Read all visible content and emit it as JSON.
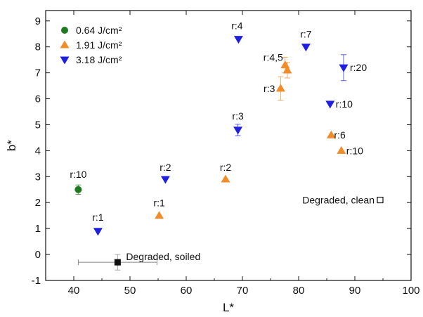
{
  "chart_data": {
    "type": "scatter",
    "xlabel": "L*",
    "ylabel": "b*",
    "xlim": [
      35,
      100
    ],
    "ylim": [
      -1,
      9.4
    ],
    "xticks": [
      40,
      50,
      60,
      70,
      80,
      90,
      100
    ],
    "yticks": [
      -1,
      0,
      1,
      2,
      3,
      4,
      5,
      6,
      7,
      8,
      9
    ],
    "legend_position": "top-left",
    "series": [
      {
        "name": "0.64 J/cm²",
        "marker": "circle",
        "color": "#1f7a1f",
        "points": [
          {
            "x": 40.8,
            "y": 2.5,
            "yerr": 0.18,
            "label": "r:10"
          }
        ]
      },
      {
        "name": "1.91 J/cm²",
        "marker": "triangle-up",
        "color": "#f28c28",
        "points": [
          {
            "x": 55.2,
            "y": 1.5,
            "label": "r:1"
          },
          {
            "x": 67.0,
            "y": 2.9,
            "label": "r:2"
          },
          {
            "x": 76.8,
            "y": 6.4,
            "yerr": 0.45,
            "label": "r:3"
          },
          {
            "x": 77.6,
            "y": 7.3,
            "yerr": 0.3,
            "label": "r:4,5"
          },
          {
            "x": 78.0,
            "y": 7.1,
            "yerr": 0.3,
            "label": ""
          },
          {
            "x": 85.8,
            "y": 4.6,
            "label": "r:6"
          },
          {
            "x": 87.6,
            "y": 4.0,
            "label": "r:10"
          }
        ]
      },
      {
        "name": "3.18 J/cm²",
        "marker": "triangle-down",
        "color": "#1f1fe0",
        "points": [
          {
            "x": 44.3,
            "y": 0.9,
            "label": "r:1"
          },
          {
            "x": 56.3,
            "y": 2.9,
            "label": "r:2"
          },
          {
            "x": 69.2,
            "y": 4.8,
            "yerr": 0.22,
            "label": "r:3"
          },
          {
            "x": 69.3,
            "y": 8.3,
            "label": "r:4"
          },
          {
            "x": 81.3,
            "y": 8.0,
            "label": "r:7"
          },
          {
            "x": 85.6,
            "y": 5.8,
            "label": "r:10"
          },
          {
            "x": 88.0,
            "y": 7.2,
            "yerr": 0.5,
            "label": "r:20"
          }
        ]
      },
      {
        "name": "Degraded, soiled",
        "marker": "square-filled",
        "color": "#111111",
        "points": [
          {
            "x": 47.8,
            "y": -0.3,
            "xerr": 7.0,
            "yerr": 0.3,
            "label": "Degraded, soiled"
          }
        ]
      },
      {
        "name": "Degraded, clean",
        "marker": "square-open",
        "color": "#111111",
        "points": [
          {
            "x": 94.5,
            "y": 2.1,
            "label": "Degraded, clean"
          }
        ]
      }
    ],
    "legend": [
      "0.64 J/cm²",
      "1.91 J/cm²",
      "3.18 J/cm²"
    ]
  }
}
